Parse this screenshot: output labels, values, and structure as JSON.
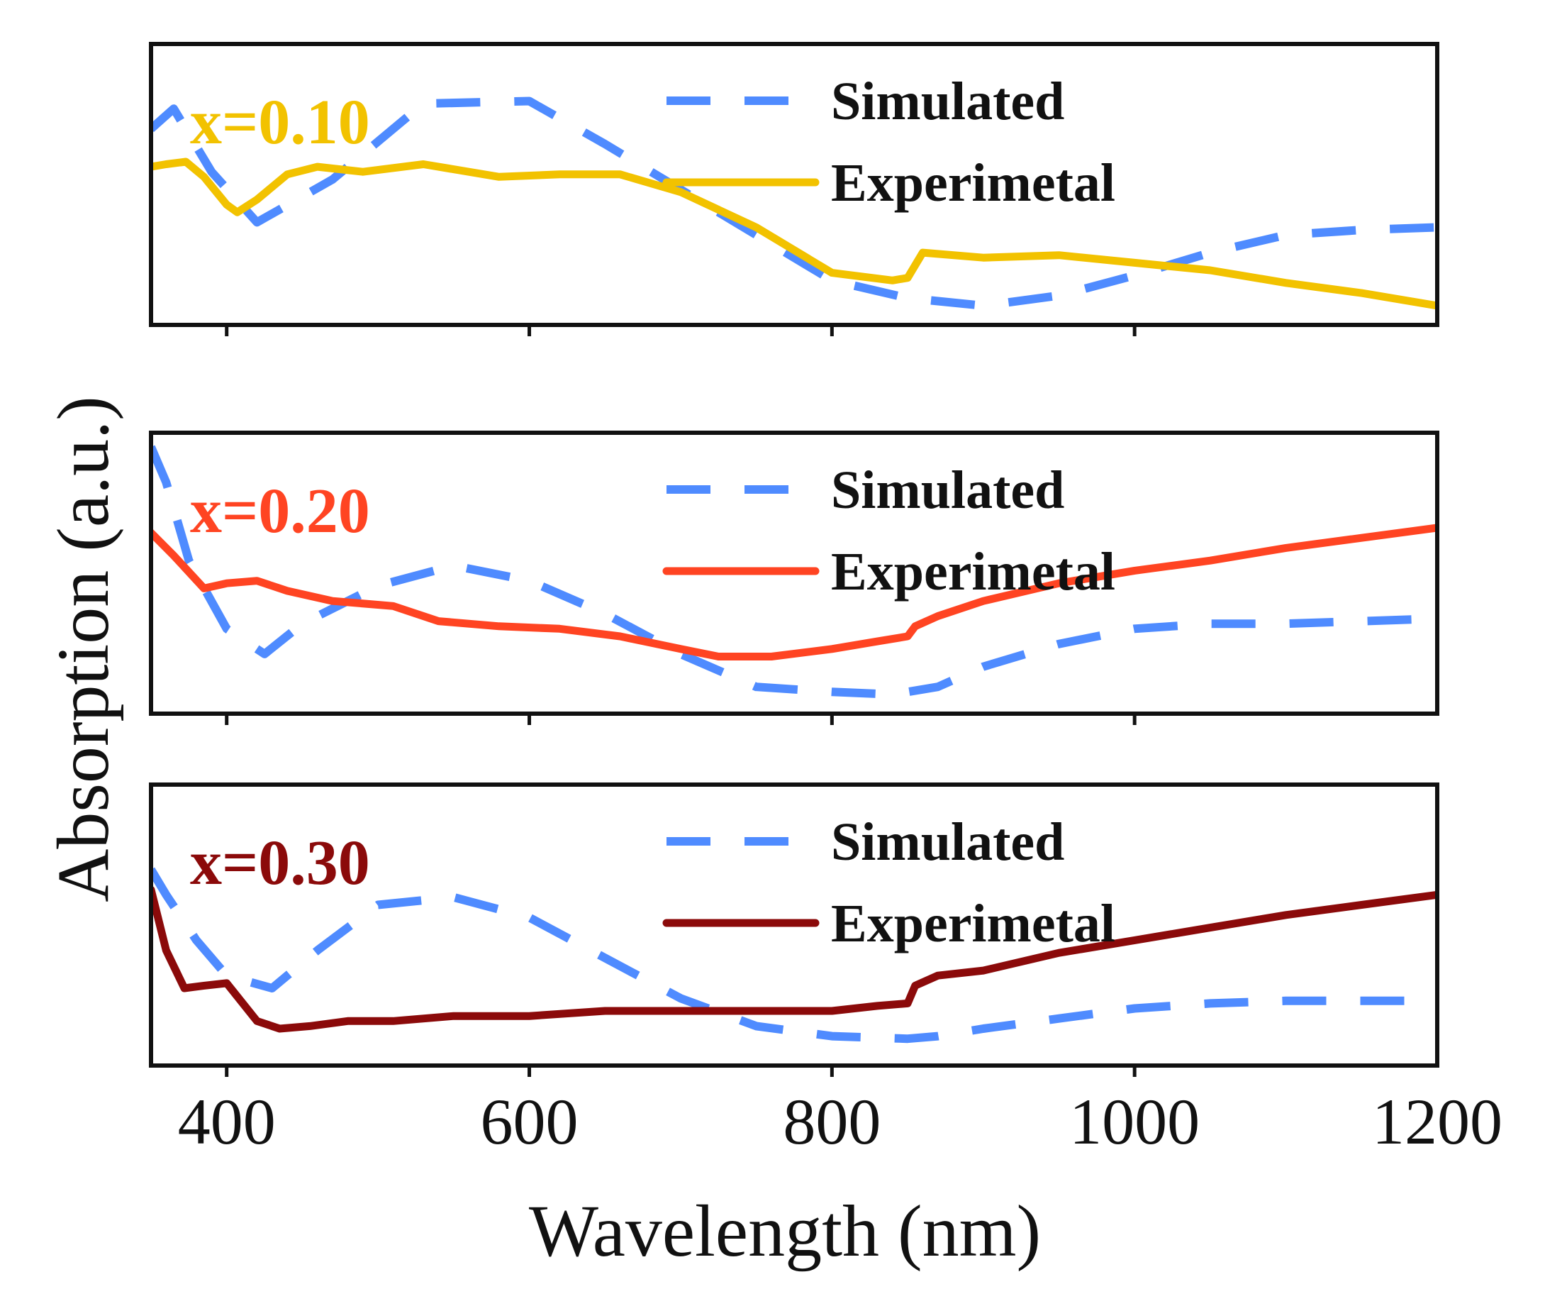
{
  "chart_data": {
    "type": "line",
    "xlabel": "Wavelength (nm)",
    "ylabel": "Absorption (a.u.)",
    "xlim": [
      350,
      1200
    ],
    "ylim": [
      0,
      1
    ],
    "xticks": [
      400,
      600,
      800,
      1000,
      1200
    ],
    "grid": false,
    "legend_position": "top-right",
    "panels": [
      {
        "label": "x=0.10",
        "label_color": "#F2C200",
        "series": [
          {
            "name": "Simulated",
            "style": "dashed",
            "color": "#4F8BFF",
            "x": [
              350,
              365,
              390,
              420,
              470,
              530,
              600,
              650,
              700,
              750,
              800,
              850,
              900,
              950,
              1000,
              1050,
              1100,
              1150,
              1200
            ],
            "y": [
              0.72,
              0.8,
              0.55,
              0.35,
              0.52,
              0.82,
              0.83,
              0.66,
              0.48,
              0.3,
              0.12,
              0.05,
              0.02,
              0.06,
              0.14,
              0.23,
              0.3,
              0.32,
              0.33
            ]
          },
          {
            "name": "Experimetal",
            "style": "solid",
            "color": "#F2C200",
            "x": [
              350,
              360,
              373,
              385,
              400,
              407,
              420,
              440,
              460,
              490,
              530,
              580,
              620,
              660,
              700,
              750,
              800,
              840,
              850,
              855,
              860,
              900,
              950,
              1000,
              1050,
              1100,
              1150,
              1200
            ],
            "y": [
              0.57,
              0.58,
              0.59,
              0.53,
              0.42,
              0.39,
              0.44,
              0.54,
              0.57,
              0.55,
              0.58,
              0.53,
              0.54,
              0.54,
              0.47,
              0.33,
              0.15,
              0.12,
              0.13,
              0.18,
              0.23,
              0.21,
              0.22,
              0.19,
              0.16,
              0.11,
              0.07,
              0.02
            ]
          }
        ]
      },
      {
        "label": "x=0.20",
        "label_color": "#FF4422",
        "series": [
          {
            "name": "Simulated",
            "style": "dashed",
            "color": "#4F8BFF",
            "x": [
              350,
              360,
              375,
              400,
              425,
              450,
              500,
              550,
              600,
              650,
              700,
              750,
              800,
              840,
              870,
              900,
              950,
              1000,
              1050,
              1100,
              1150,
              1200
            ],
            "y": [
              1.0,
              0.86,
              0.55,
              0.28,
              0.18,
              0.3,
              0.45,
              0.53,
              0.47,
              0.34,
              0.18,
              0.05,
              0.03,
              0.02,
              0.05,
              0.13,
              0.22,
              0.28,
              0.3,
              0.3,
              0.31,
              0.32
            ]
          },
          {
            "name": "Experimetal",
            "style": "solid",
            "color": "#FF4422",
            "x": [
              350,
              365,
              385,
              400,
              420,
              440,
              470,
              510,
              540,
              580,
              620,
              660,
              700,
              725,
              760,
              800,
              830,
              850,
              855,
              870,
              900,
              950,
              1000,
              1050,
              1100,
              1150,
              1200
            ],
            "y": [
              0.66,
              0.57,
              0.44,
              0.46,
              0.47,
              0.43,
              0.39,
              0.37,
              0.31,
              0.29,
              0.28,
              0.25,
              0.2,
              0.17,
              0.17,
              0.2,
              0.23,
              0.25,
              0.29,
              0.33,
              0.39,
              0.46,
              0.51,
              0.55,
              0.6,
              0.64,
              0.68
            ]
          }
        ]
      },
      {
        "label": "x=0.30",
        "label_color": "#8B0A0A",
        "series": [
          {
            "name": "Simulated",
            "style": "dashed",
            "color": "#4F8BFF",
            "x": [
              350,
              360,
              380,
              400,
              430,
              460,
              500,
              550,
              600,
              650,
              700,
              750,
              800,
              850,
              870,
              900,
              950,
              1000,
              1050,
              1100,
              1150,
              1200
            ],
            "y": [
              0.72,
              0.62,
              0.44,
              0.3,
              0.25,
              0.4,
              0.58,
              0.61,
              0.53,
              0.37,
              0.21,
              0.1,
              0.06,
              0.05,
              0.06,
              0.09,
              0.13,
              0.17,
              0.19,
              0.2,
              0.2,
              0.2
            ]
          },
          {
            "name": "Experimetal",
            "style": "solid",
            "color": "#8B0A0A",
            "x": [
              350,
              360,
              372,
              385,
              400,
              420,
              435,
              455,
              480,
              510,
              550,
              600,
              650,
              700,
              750,
              800,
              830,
              850,
              855,
              870,
              900,
              950,
              1000,
              1050,
              1100,
              1150,
              1200
            ],
            "y": [
              0.64,
              0.4,
              0.25,
              0.26,
              0.27,
              0.12,
              0.09,
              0.1,
              0.12,
              0.12,
              0.14,
              0.14,
              0.16,
              0.16,
              0.16,
              0.16,
              0.18,
              0.19,
              0.26,
              0.3,
              0.32,
              0.39,
              0.44,
              0.49,
              0.54,
              0.58,
              0.62
            ]
          }
        ]
      }
    ]
  }
}
